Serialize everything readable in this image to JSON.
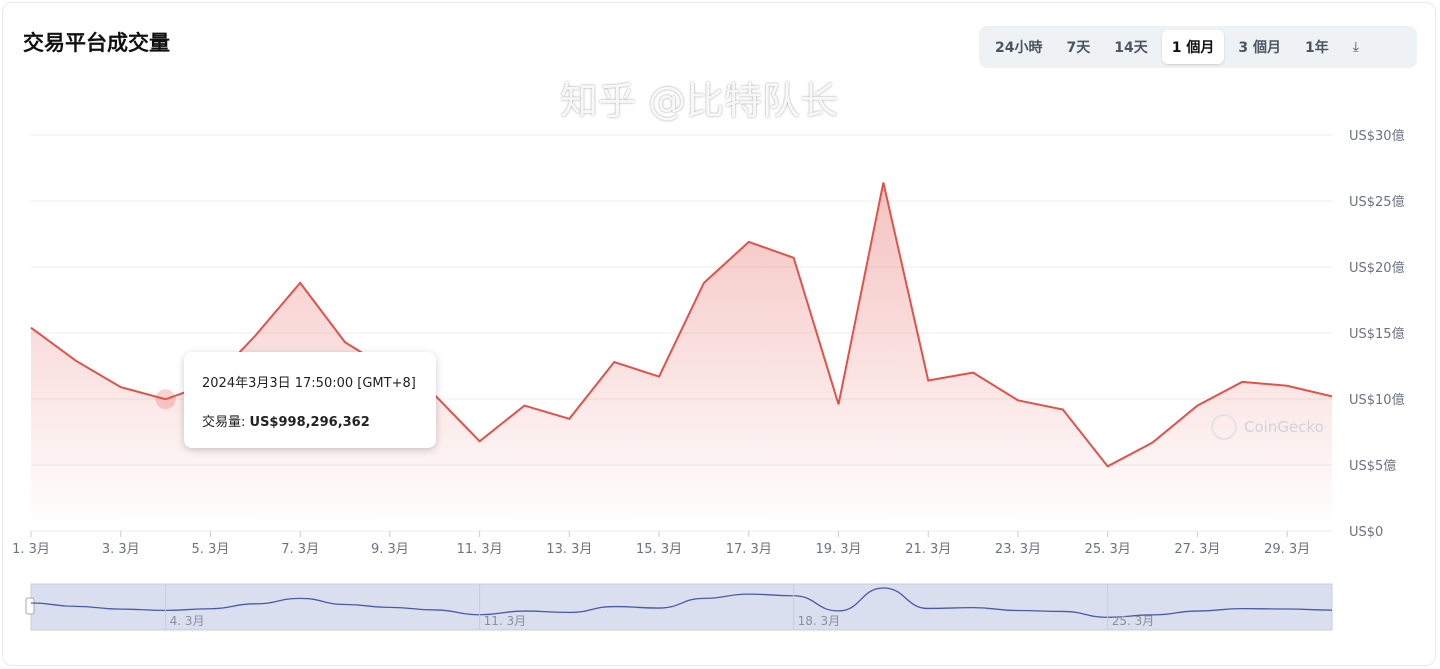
{
  "title": "交易平台成交量",
  "tabs": [
    {
      "label": "24小時"
    },
    {
      "label": "7天"
    },
    {
      "label": "14天"
    },
    {
      "label": "1 個月",
      "active": true
    },
    {
      "label": "3 個月"
    },
    {
      "label": "1年"
    }
  ],
  "download_icon": "download-icon",
  "tooltip": {
    "date": "2024年3月3日 17:50:00 [GMT+8]",
    "label": "交易量: ",
    "value": "US$998,296,362"
  },
  "watermark_logo": "CoinGecko",
  "overlay_watermark": "知乎 @比特队长",
  "navigator_labels": [
    "4. 3月",
    "11. 3月",
    "18. 3月",
    "25. 3月"
  ],
  "chart_data": {
    "type": "area",
    "x_tick_labels": [
      "1. 3月",
      "3. 3月",
      "5. 3月",
      "7. 3月",
      "9. 3月",
      "11. 3月",
      "13. 3月",
      "15. 3月",
      "17. 3月",
      "19. 3月",
      "21. 3月",
      "23. 3月",
      "25. 3月",
      "27. 3月",
      "29. 3月"
    ],
    "y_tick_labels": [
      "US$0",
      "US$5億",
      "US$10億",
      "US$15億",
      "US$20億",
      "US$25億",
      "US$30億"
    ],
    "ylim": [
      0,
      30
    ],
    "y_unit": "億 USD",
    "x": [
      1,
      2,
      3,
      4,
      5,
      6,
      7,
      8,
      9,
      10,
      11,
      12,
      13,
      14,
      15,
      16,
      17,
      18,
      19,
      20,
      21,
      22,
      23,
      24,
      25,
      26,
      27,
      28,
      29,
      30
    ],
    "values": [
      15.4,
      12.9,
      10.9,
      9.98,
      11.2,
      14.8,
      18.8,
      14.3,
      12.2,
      10.3,
      6.8,
      9.5,
      8.5,
      12.8,
      11.7,
      18.8,
      21.9,
      20.7,
      9.6,
      26.4,
      11.4,
      12.0,
      9.9,
      9.2,
      4.9,
      6.7,
      9.5,
      11.3,
      11.0,
      10.2
    ],
    "highlight_index": 3,
    "color": "#e0524a",
    "grid": true
  }
}
